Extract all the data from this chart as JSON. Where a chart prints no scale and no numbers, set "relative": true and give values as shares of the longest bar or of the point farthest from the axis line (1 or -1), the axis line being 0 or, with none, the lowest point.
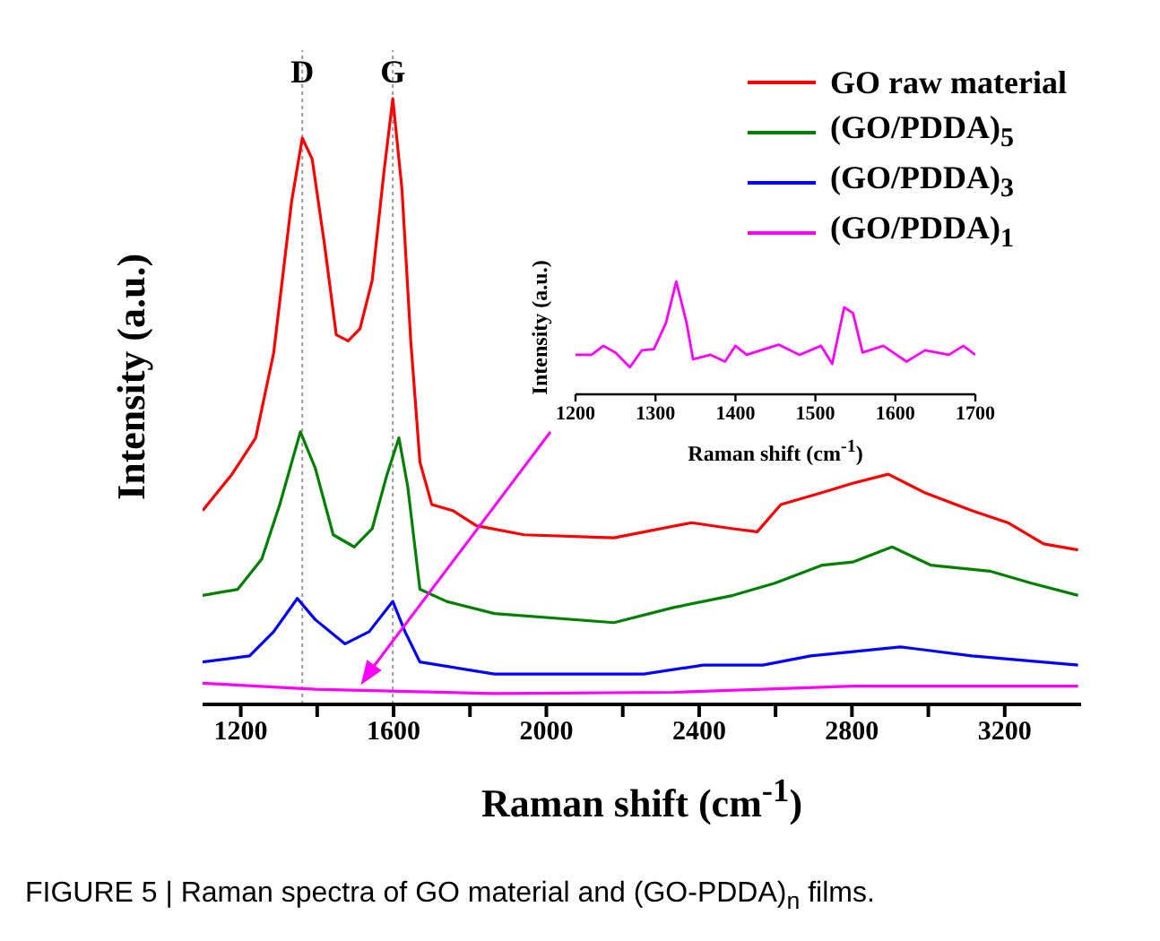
{
  "chart_data": [
    {
      "type": "line",
      "relative": true,
      "xlabel": "Raman shift (cm$^{-1}$)",
      "ylabel": "Intensity (a.u.)",
      "xlim": [
        1100,
        3400
      ],
      "xticks": [
        1200,
        {
          "value": 1400,
          "label": null
        },
        1600,
        {
          "value": 1800,
          "label": null
        },
        2000,
        {
          "value": 2200,
          "label": null
        },
        2400,
        {
          "value": 2600,
          "label": null
        },
        2800,
        {
          "value": 3000,
          "label": null
        },
        3200
      ],
      "legend": "top right",
      "line_style": "solid",
      "ref_lines": [
        {
          "axis": "x",
          "value": 1361,
          "label": "D",
          "color": "#9a9a9a",
          "line_style": "dotted"
        },
        {
          "axis": "x",
          "value": 1598,
          "label": "G",
          "color": "#9a9a9a",
          "line_style": "dotted"
        }
      ],
      "annotations": [
        "FIGURE 5 | Raman spectra of GO material and (GO-PDDA)$_{n}$ films."
      ],
      "series": [
        {
          "name": "GO raw material",
          "color": "#ff0000",
          "x": [
            1100,
            1177,
            1239,
            1286,
            1333,
            1361,
            1387,
            1419,
            1450,
            1481,
            1512,
            1544,
            1575,
            1598,
            1622,
            1645,
            1669,
            1700,
            1755,
            1817,
            1942,
            2177,
            2380,
            2489,
            2552,
            2614,
            2723,
            2802,
            2895,
            2989,
            3114,
            3208,
            3302,
            3392
          ],
          "values": [
            0.32,
            0.38,
            0.44,
            0.58,
            0.83,
            0.935,
            0.9,
            0.76,
            0.61,
            0.6,
            0.62,
            0.7,
            0.88,
            1.0,
            0.85,
            0.6,
            0.4,
            0.33,
            0.32,
            0.295,
            0.28,
            0.275,
            0.3,
            0.29,
            0.285,
            0.33,
            0.35,
            0.365,
            0.38,
            0.35,
            0.32,
            0.3,
            0.265,
            0.255
          ]
        },
        {
          "name": "(GO/PDDA)$_{5}$",
          "color": "#008000",
          "x": [
            1100,
            1192,
            1255,
            1302,
            1356,
            1395,
            1442,
            1497,
            1544,
            1583,
            1614,
            1637,
            1669,
            1739,
            1864,
            2177,
            2333,
            2489,
            2598,
            2723,
            2802,
            2905,
            3006,
            3161,
            3270,
            3392
          ],
          "values": [
            0.18,
            0.19,
            0.24,
            0.33,
            0.45,
            0.39,
            0.28,
            0.26,
            0.29,
            0.38,
            0.44,
            0.36,
            0.19,
            0.17,
            0.15,
            0.135,
            0.16,
            0.18,
            0.2,
            0.23,
            0.235,
            0.26,
            0.23,
            0.22,
            0.2,
            0.18
          ]
        },
        {
          "name": "(GO/PDDA)$_{3}$",
          "color": "#0000ff",
          "x": [
            1100,
            1223,
            1286,
            1348,
            1395,
            1473,
            1536,
            1598,
            1630,
            1669,
            1864,
            2255,
            2411,
            2567,
            2692,
            2927,
            3114,
            3392
          ],
          "values": [
            0.07,
            0.08,
            0.12,
            0.175,
            0.14,
            0.1,
            0.12,
            0.17,
            0.12,
            0.07,
            0.05,
            0.05,
            0.065,
            0.065,
            0.08,
            0.095,
            0.08,
            0.065
          ]
        },
        {
          "name": "(GO/PDDA)$_{1}$",
          "color": "#ff00ff",
          "x": [
            1100,
            1395,
            1864,
            2333,
            2802,
            3392
          ],
          "values": [
            0.035,
            0.025,
            0.018,
            0.02,
            0.03,
            0.03
          ]
        }
      ]
    },
    {
      "type": "line",
      "relative": true,
      "xlabel": "Raman shift (cm$^{-1}$)",
      "ylabel": "Intensity (a.u.)",
      "xlim": [
        1200,
        1700
      ],
      "xticks": [
        1200,
        1300,
        1400,
        1500,
        1600,
        1700
      ],
      "line_style": "solid",
      "series": [
        {
          "color": "#ff00ff",
          "x": [
            1200,
            1220,
            1235,
            1250,
            1268,
            1283,
            1298,
            1313,
            1326,
            1339,
            1347,
            1369,
            1387,
            1400,
            1414,
            1454,
            1480,
            1507,
            1521,
            1536,
            1547,
            1559,
            1585,
            1614,
            1637,
            1667,
            1685,
            1700
          ],
          "values": [
            0.35,
            0.35,
            0.43,
            0.37,
            0.24,
            0.39,
            0.4,
            0.63,
            1.0,
            0.63,
            0.31,
            0.35,
            0.29,
            0.43,
            0.35,
            0.44,
            0.35,
            0.43,
            0.27,
            0.77,
            0.72,
            0.37,
            0.43,
            0.29,
            0.39,
            0.35,
            0.43,
            0.35
          ]
        }
      ]
    }
  ]
}
